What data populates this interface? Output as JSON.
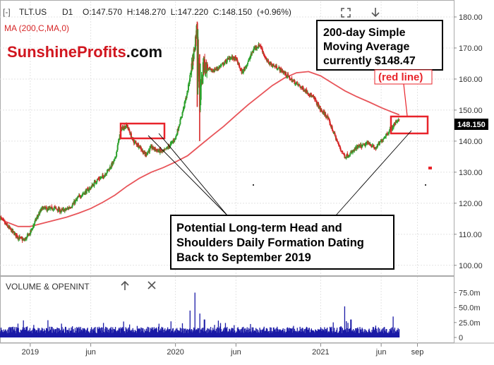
{
  "header": {
    "bracket_symbol": "[-]",
    "symbol": "TLT.US",
    "timeframe": "D1",
    "ohlc": "O:147.570  H:148.270  L:147.220  C:148.150  (+0.96%)",
    "indicator_label": "MA (200,C,MA,0)",
    "fullscreen_icon": "expand-icon",
    "download_icon": "arrow-down-icon"
  },
  "watermark": {
    "part1": "Sunshine",
    "part2": "Profits",
    "part3": ".com"
  },
  "annotations": {
    "sma_box_line1": "200-day Simple",
    "sma_box_line2": "Moving Average",
    "sma_box_line3": "currently $148.47",
    "red_line_label": "(red line)",
    "hs_box_line1": "Potential Long-term Head and",
    "hs_box_line2": "Shoulders Daily Formation Dating",
    "hs_box_line3": "Back to September 2019"
  },
  "last_price_label": "148.150",
  "volume_panel": {
    "title": "VOLUME & OPENINT",
    "up_icon": "arrow-up-icon",
    "close_icon": "close-icon",
    "y_ticks": [
      "75.0m",
      "50.0m",
      "25.0m",
      "0"
    ]
  },
  "colors": {
    "up_candle": "#2ca02c",
    "down_candle": "#d62728",
    "ma_line": "#e8555a",
    "annotation_red": "#e8242b",
    "volume_bar": "#1a1aa6",
    "last_price_bg": "#000000"
  },
  "chart_data": {
    "type": "candlestick",
    "price_axis": {
      "ylim": [
        97,
        185
      ],
      "ticks": [
        100,
        110,
        120,
        130,
        140,
        150,
        160,
        170,
        180
      ],
      "tick_labels": [
        "100.00",
        "110.00",
        "120.00",
        "130.00",
        "140.00",
        "150.00",
        "160.00",
        "170.00",
        "180.00"
      ]
    },
    "x_axis": {
      "tick_labels": [
        "2019",
        "jun",
        "2020",
        "jun",
        "2021",
        "jun",
        "sep"
      ],
      "tick_positions": [
        0.0,
        5.0,
        12.0,
        17.0,
        24.0,
        29.0,
        32.0
      ],
      "range_months": [
        -2.5,
        35.0
      ]
    },
    "price_series": [
      [
        -2.5,
        115.5
      ],
      [
        -2.0,
        113.0
      ],
      [
        -1.5,
        111.0
      ],
      [
        -1.0,
        109.0
      ],
      [
        -0.5,
        108.0
      ],
      [
        0.0,
        110.5
      ],
      [
        0.5,
        115.0
      ],
      [
        1.0,
        118.5
      ],
      [
        1.5,
        118.0
      ],
      [
        2.0,
        118.5
      ],
      [
        2.5,
        117.5
      ],
      [
        3.0,
        118.0
      ],
      [
        3.5,
        119.5
      ],
      [
        4.0,
        122.0
      ],
      [
        4.5,
        123.5
      ],
      [
        5.0,
        125.0
      ],
      [
        5.5,
        127.5
      ],
      [
        6.0,
        128.5
      ],
      [
        6.5,
        131.0
      ],
      [
        7.0,
        134.0
      ],
      [
        7.5,
        144.0
      ],
      [
        8.0,
        145.0
      ],
      [
        8.5,
        140.0
      ],
      [
        9.0,
        138.5
      ],
      [
        9.5,
        135.5
      ],
      [
        10.0,
        138.0
      ],
      [
        10.5,
        137.0
      ],
      [
        11.0,
        136.5
      ],
      [
        11.5,
        138.5
      ],
      [
        12.0,
        141.0
      ],
      [
        12.5,
        148.0
      ],
      [
        13.0,
        156.0
      ],
      [
        13.5,
        168.0
      ],
      [
        13.8,
        178.0
      ],
      [
        14.0,
        152.0
      ],
      [
        14.3,
        165.0
      ],
      [
        14.6,
        163.5
      ],
      [
        15.0,
        162.5
      ],
      [
        15.5,
        163.5
      ],
      [
        16.0,
        165.0
      ],
      [
        16.5,
        167.0
      ],
      [
        17.0,
        166.5
      ],
      [
        17.5,
        162.0
      ],
      [
        18.0,
        165.5
      ],
      [
        18.5,
        170.0
      ],
      [
        19.0,
        171.0
      ],
      [
        19.5,
        166.0
      ],
      [
        20.0,
        164.5
      ],
      [
        20.5,
        163.5
      ],
      [
        21.0,
        162.0
      ],
      [
        21.5,
        160.0
      ],
      [
        22.0,
        158.5
      ],
      [
        22.5,
        157.0
      ],
      [
        23.0,
        155.5
      ],
      [
        23.5,
        153.5
      ],
      [
        24.0,
        150.0
      ],
      [
        24.5,
        148.0
      ],
      [
        25.0,
        143.5
      ],
      [
        25.5,
        138.5
      ],
      [
        26.0,
        135.0
      ],
      [
        26.5,
        136.0
      ],
      [
        27.0,
        138.0
      ],
      [
        27.5,
        138.5
      ],
      [
        28.0,
        139.5
      ],
      [
        28.5,
        137.5
      ],
      [
        29.0,
        140.0
      ],
      [
        29.5,
        142.5
      ],
      [
        30.0,
        145.0
      ],
      [
        30.5,
        147.5
      ]
    ],
    "ma_series": [
      [
        -2.5,
        115.0
      ],
      [
        -2.0,
        114.0
      ],
      [
        -1.0,
        112.5
      ],
      [
        0.0,
        112.5
      ],
      [
        1.0,
        113.5
      ],
      [
        2.0,
        114.5
      ],
      [
        3.0,
        115.5
      ],
      [
        4.0,
        116.8
      ],
      [
        5.0,
        118.3
      ],
      [
        6.0,
        120.3
      ],
      [
        7.0,
        122.6
      ],
      [
        8.0,
        125.5
      ],
      [
        9.0,
        128.0
      ],
      [
        10.0,
        130.0
      ],
      [
        11.0,
        131.5
      ],
      [
        12.0,
        133.3
      ],
      [
        13.0,
        135.3
      ],
      [
        14.0,
        138.5
      ],
      [
        15.0,
        141.7
      ],
      [
        16.0,
        144.8
      ],
      [
        17.0,
        148.3
      ],
      [
        18.0,
        151.7
      ],
      [
        19.0,
        154.8
      ],
      [
        20.0,
        157.9
      ],
      [
        21.0,
        160.3
      ],
      [
        22.0,
        162.0
      ],
      [
        23.0,
        162.4
      ],
      [
        24.0,
        161.0
      ],
      [
        25.0,
        158.6
      ],
      [
        26.0,
        156.2
      ],
      [
        27.0,
        154.3
      ],
      [
        28.0,
        152.6
      ],
      [
        29.0,
        150.8
      ],
      [
        30.0,
        149.2
      ],
      [
        30.5,
        148.47
      ]
    ],
    "volume_axis": {
      "ylim": [
        0,
        85
      ]
    },
    "volume_spikes": [
      [
        13.2,
        45.0
      ],
      [
        13.6,
        75.0
      ],
      [
        14.0,
        40.0
      ],
      [
        14.4,
        30.0
      ],
      [
        26.0,
        52.0
      ],
      [
        26.5,
        30.0
      ],
      [
        30.0,
        35.0
      ]
    ]
  }
}
